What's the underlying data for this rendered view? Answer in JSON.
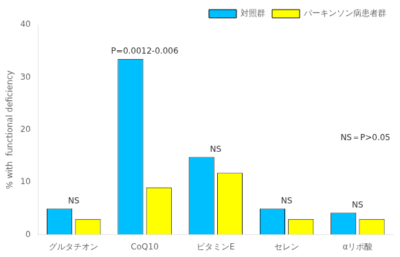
{
  "chart_data": {
    "type": "bar",
    "categories": [
      "グルタチオン",
      "CoQ10",
      "ビタミンE",
      "セレン",
      "αリポ酸"
    ],
    "series": [
      {
        "name": "対照群",
        "color": "#00BFFF",
        "values": [
          5.0,
          33.5,
          14.8,
          5.0,
          4.2
        ]
      },
      {
        "name": "パーキンソン病患者群",
        "color": "#FFFF00",
        "values": [
          3.0,
          9.0,
          11.8,
          3.0,
          3.0
        ]
      }
    ],
    "ylabel": "% with  functional deficiency",
    "ylim": [
      0,
      40
    ],
    "yticks": [
      0,
      10,
      20,
      30,
      40
    ],
    "grid": false,
    "legend": "upper right",
    "annotations": [
      {
        "text": "NS",
        "category": "グルタチオン"
      },
      {
        "text": "P=0.0012-0.006",
        "category": "CoQ10"
      },
      {
        "text": "NS",
        "category": "ビタミンE"
      },
      {
        "text": "NS",
        "category": "セレン"
      },
      {
        "text": "NS",
        "category": "αリポ酸"
      },
      {
        "text": "NS＝P>0.05"
      }
    ]
  }
}
